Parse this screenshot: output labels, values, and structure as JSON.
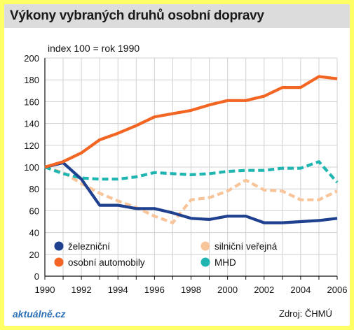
{
  "header": {
    "title": "Výkony vybraných druhů  osobní dopravy"
  },
  "footer": {
    "logo": "aktuálně.cz",
    "source": "Zdroj: ČHMÚ"
  },
  "colors": {
    "background": "#ffff66",
    "grid": "#d0d0d0",
    "zeleznicni": "#1f3f8f",
    "silnicni": "#f8c49a",
    "osobni": "#f26522",
    "mhd": "#1fb5b0"
  },
  "chart_data": {
    "type": "line",
    "subtitle": "index 100 = rok 1990",
    "ylim": [
      0,
      200
    ],
    "xlim": [
      1990,
      2006
    ],
    "yticks": [
      "0",
      "20",
      "40",
      "60",
      "80",
      "100",
      "120",
      "140",
      "160",
      "180",
      "200"
    ],
    "xticks": [
      "1990",
      "1992",
      "1994",
      "1996",
      "1998",
      "2000",
      "2002",
      "2004",
      "2006"
    ],
    "grid": true,
    "x": [
      1990,
      1991,
      1992,
      1993,
      1994,
      1995,
      1996,
      1997,
      1998,
      1999,
      2000,
      2001,
      2002,
      2003,
      2004,
      2005,
      2006
    ],
    "legend_position": "bottom-inside",
    "series": [
      {
        "key": "zeleznicni",
        "name": "železniční",
        "style": "solid",
        "values": [
          100,
          104,
          89,
          65,
          65,
          62,
          62,
          58,
          53,
          52,
          55,
          55,
          49,
          49,
          50,
          51,
          53
        ]
      },
      {
        "key": "silnicni",
        "name": "silniční  veřejná",
        "style": "dashed",
        "values": [
          100,
          95,
          85,
          76,
          69,
          63,
          55,
          49,
          70,
          72,
          78,
          88,
          79,
          78,
          70,
          70,
          78
        ]
      },
      {
        "key": "osobni",
        "name": "osobní  automobily",
        "style": "solid",
        "values": [
          100,
          105,
          113,
          125,
          131,
          138,
          146,
          149,
          152,
          157,
          161,
          161,
          165,
          173,
          173,
          183,
          181
        ]
      },
      {
        "key": "mhd",
        "name": "MHD",
        "style": "dashed",
        "values": [
          100,
          94,
          90,
          89,
          89,
          91,
          95,
          94,
          93,
          94,
          96,
          97,
          97,
          99,
          99,
          105,
          86
        ]
      }
    ]
  }
}
